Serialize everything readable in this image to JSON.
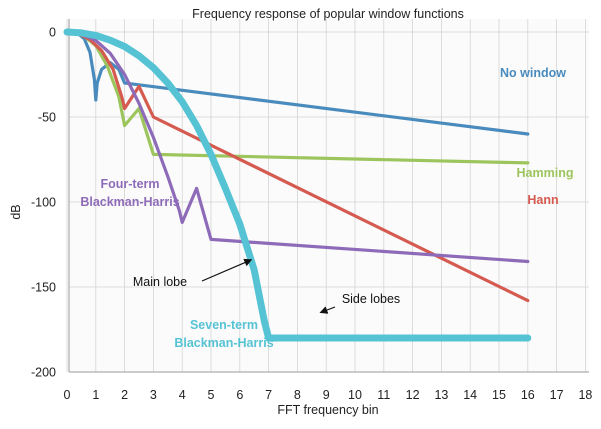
{
  "chart_data": {
    "type": "line",
    "title": "Frequency response of popular window functions",
    "xlabel": "FFT frequency bin",
    "ylabel": "dB",
    "xlim": [
      0,
      18
    ],
    "ylim": [
      -200,
      0
    ],
    "xticks": [
      0,
      1,
      2,
      3,
      4,
      5,
      6,
      7,
      8,
      9,
      10,
      11,
      12,
      13,
      14,
      15,
      16,
      17,
      18
    ],
    "yticks": [
      0,
      -50,
      -100,
      -150,
      -200
    ],
    "grid": true,
    "series": [
      {
        "name": "No window",
        "color": "#4a8bbd",
        "width": 3.2,
        "x_end": 16.05,
        "points": [
          [
            0,
            0
          ],
          [
            0.2,
            -0.3
          ],
          [
            0.4,
            -1.2
          ],
          [
            0.6,
            -4
          ],
          [
            0.8,
            -12
          ],
          [
            0.95,
            -28
          ],
          [
            1,
            -40
          ],
          [
            1.05,
            -30
          ],
          [
            1.2,
            -22
          ],
          [
            1.5,
            -18
          ],
          [
            1.8,
            -22
          ],
          [
            2,
            -30
          ],
          [
            16,
            -60
          ]
        ]
      },
      {
        "name": "Hamming",
        "color": "#9dc55e",
        "width": 3.2,
        "x_end": 16.05,
        "points": [
          [
            0,
            0
          ],
          [
            0.3,
            -0.6
          ],
          [
            0.6,
            -2.5
          ],
          [
            1,
            -8
          ],
          [
            1.4,
            -20
          ],
          [
            1.8,
            -38
          ],
          [
            2,
            -55
          ],
          [
            2.5,
            -45
          ],
          [
            3,
            -72
          ],
          [
            16,
            -77
          ]
        ]
      },
      {
        "name": "Hann",
        "color": "#d55a50",
        "width": 3.2,
        "x_end": 16.05,
        "points": [
          [
            0,
            0
          ],
          [
            0.4,
            -1
          ],
          [
            0.8,
            -4.5
          ],
          [
            1.2,
            -11
          ],
          [
            1.6,
            -22
          ],
          [
            1.9,
            -38
          ],
          [
            2,
            -45
          ],
          [
            2.5,
            -32
          ],
          [
            3,
            -50
          ],
          [
            16,
            -158
          ]
        ]
      },
      {
        "name": "Four-term Blackman-Harris",
        "color": "#8e6bb8",
        "width": 3.2,
        "x_end": 16.05,
        "points": [
          [
            0,
            0
          ],
          [
            0.5,
            -1.2
          ],
          [
            1,
            -5
          ],
          [
            1.5,
            -12.5
          ],
          [
            2,
            -25
          ],
          [
            2.5,
            -42
          ],
          [
            3,
            -62
          ],
          [
            3.5,
            -85
          ],
          [
            3.9,
            -105
          ],
          [
            4,
            -112
          ],
          [
            4.5,
            -92
          ],
          [
            5,
            -122
          ],
          [
            16,
            -135
          ]
        ]
      },
      {
        "name": "Seven-term Blackman-Harris",
        "color": "#56c3d4",
        "width": 7,
        "points": [
          [
            0,
            0
          ],
          [
            0.5,
            -0.5
          ],
          [
            1,
            -2
          ],
          [
            1.5,
            -4.8
          ],
          [
            2,
            -8.5
          ],
          [
            2.5,
            -14
          ],
          [
            3,
            -21
          ],
          [
            3.5,
            -30
          ],
          [
            4,
            -41
          ],
          [
            4.5,
            -55
          ],
          [
            5,
            -72
          ],
          [
            5.5,
            -92
          ],
          [
            6,
            -113
          ],
          [
            6.5,
            -140
          ],
          [
            6.85,
            -170
          ],
          [
            7,
            -180
          ],
          [
            16,
            -180
          ]
        ]
      }
    ],
    "series_labels": [
      "No window",
      "Hamming",
      "Hann",
      "Four-term\nBlackman-Harris",
      "Seven-term\nBlackman-Harris"
    ],
    "annotations": [
      {
        "text": "Main lobe",
        "arrow_to": [
          6.4,
          -134
        ]
      },
      {
        "text": "Side lobes",
        "arrow_to": [
          8.8,
          -165
        ]
      }
    ]
  }
}
